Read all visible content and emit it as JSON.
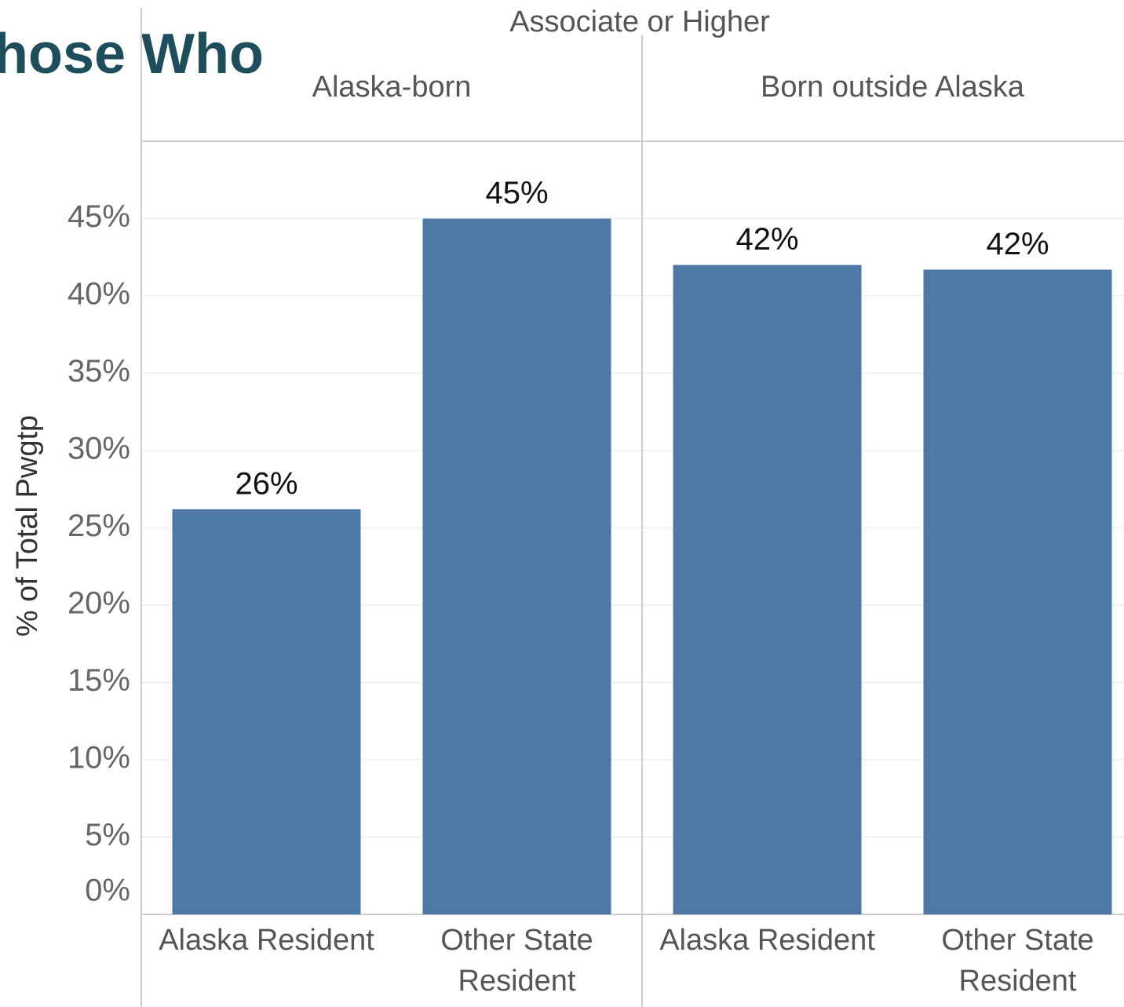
{
  "chart_data": {
    "type": "bar",
    "title": "hose Who",
    "header": "Associate or Higher",
    "y_label": "% of Total Pwgtp",
    "color": "#4e79a7",
    "ylim": [
      0,
      50
    ],
    "yticks": [
      {
        "value": 0,
        "label": "0%"
      },
      {
        "value": 5,
        "label": "5%"
      },
      {
        "value": 10,
        "label": "10%"
      },
      {
        "value": 15,
        "label": "15%"
      },
      {
        "value": 20,
        "label": "20%"
      },
      {
        "value": 25,
        "label": "25%"
      },
      {
        "value": 30,
        "label": "30%"
      },
      {
        "value": 35,
        "label": "35%"
      },
      {
        "value": 40,
        "label": "40%"
      },
      {
        "value": 45,
        "label": "45%"
      }
    ],
    "grid": true,
    "panes": [
      {
        "name": "Alaska-born",
        "categories": [
          "Alaska Resident",
          "Other State Resident"
        ],
        "values": [
          26.2,
          45
        ],
        "value_labels": [
          "26%",
          "45%"
        ]
      },
      {
        "name": "Born outside Alaska",
        "categories": [
          "Alaska Resident",
          "Other State Resident"
        ],
        "values": [
          42,
          41.7
        ],
        "value_labels": [
          "42%",
          "42%"
        ]
      }
    ]
  }
}
